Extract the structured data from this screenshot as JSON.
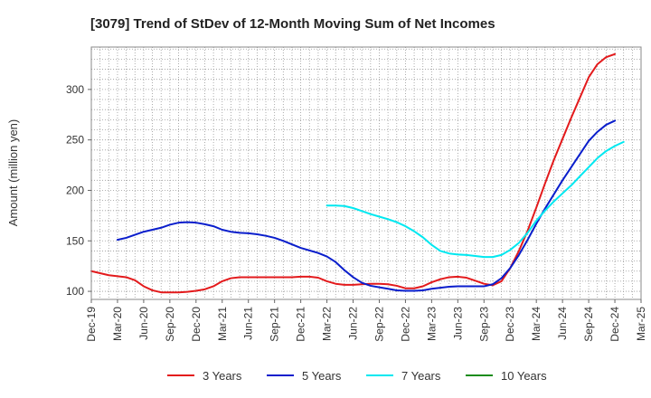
{
  "chart_data": {
    "type": "line",
    "title": "[3079]  Trend of StDev of 12-Month Moving Sum of Net Incomes",
    "xlabel": "",
    "ylabel": "Amount (million yen)",
    "x_ticks": [
      "Dec-19",
      "Mar-20",
      "Jun-20",
      "Sep-20",
      "Dec-20",
      "Mar-21",
      "Jun-21",
      "Sep-21",
      "Dec-21",
      "Mar-22",
      "Jun-22",
      "Sep-22",
      "Dec-22",
      "Mar-23",
      "Jun-23",
      "Sep-23",
      "Dec-23",
      "Mar-24",
      "Jun-24",
      "Sep-24",
      "Dec-24",
      "Mar-25"
    ],
    "y_ticks": [
      100,
      150,
      200,
      250,
      300
    ],
    "ylim": [
      92,
      342
    ],
    "grid": true,
    "legend_position": "bottom",
    "series": [
      {
        "name": "3 Years",
        "color": "#e31a1c",
        "values": [
          [
            "Dec-19",
            120
          ],
          [
            "Jan-20",
            118
          ],
          [
            "Feb-20",
            116
          ],
          [
            "Mar-20",
            115
          ],
          [
            "Apr-20",
            114
          ],
          [
            "May-20",
            111
          ],
          [
            "Jun-20",
            105
          ],
          [
            "Jul-20",
            101
          ],
          [
            "Aug-20",
            99
          ],
          [
            "Sep-20",
            99
          ],
          [
            "Oct-20",
            99
          ],
          [
            "Nov-20",
            99.5
          ],
          [
            "Dec-20",
            100.5
          ],
          [
            "Jan-21",
            102
          ],
          [
            "Feb-21",
            105
          ],
          [
            "Mar-21",
            110
          ],
          [
            "Apr-21",
            113
          ],
          [
            "May-21",
            114
          ],
          [
            "Jun-21",
            114
          ],
          [
            "Jul-21",
            114
          ],
          [
            "Aug-21",
            114
          ],
          [
            "Sep-21",
            114
          ],
          [
            "Oct-21",
            114
          ],
          [
            "Nov-21",
            114
          ],
          [
            "Dec-21",
            114.5
          ],
          [
            "Jan-22",
            114.5
          ],
          [
            "Feb-22",
            113.5
          ],
          [
            "Mar-22",
            110
          ],
          [
            "Apr-22",
            107.5
          ],
          [
            "May-22",
            106.5
          ],
          [
            "Jun-22",
            106.5
          ],
          [
            "Jul-22",
            107
          ],
          [
            "Aug-22",
            107.5
          ],
          [
            "Sep-22",
            107.5
          ],
          [
            "Oct-22",
            107
          ],
          [
            "Nov-22",
            105.5
          ],
          [
            "Dec-22",
            103
          ],
          [
            "Jan-23",
            103
          ],
          [
            "Feb-23",
            105
          ],
          [
            "Mar-23",
            109
          ],
          [
            "Apr-23",
            112
          ],
          [
            "May-23",
            114
          ],
          [
            "Jun-23",
            114.5
          ],
          [
            "Jul-23",
            113.5
          ],
          [
            "Aug-23",
            110.5
          ],
          [
            "Sep-23",
            107.5
          ],
          [
            "Oct-23",
            106
          ],
          [
            "Nov-23",
            110
          ],
          [
            "Dec-23",
            123
          ],
          [
            "Jan-24",
            140
          ],
          [
            "Feb-24",
            160
          ],
          [
            "Mar-24",
            183
          ],
          [
            "Apr-24",
            207
          ],
          [
            "May-24",
            230
          ],
          [
            "Jun-24",
            251
          ],
          [
            "Jul-24",
            272
          ],
          [
            "Aug-24",
            292
          ],
          [
            "Sep-24",
            312
          ],
          [
            "Oct-24",
            325
          ],
          [
            "Nov-24",
            332
          ],
          [
            "Dec-24",
            335
          ]
        ]
      },
      {
        "name": "5 Years",
        "color": "#0a1ecc",
        "values": [
          [
            "Mar-20",
            151
          ],
          [
            "Apr-20",
            153
          ],
          [
            "May-20",
            156
          ],
          [
            "Jun-20",
            159
          ],
          [
            "Jul-20",
            161
          ],
          [
            "Aug-20",
            163
          ],
          [
            "Sep-20",
            166
          ],
          [
            "Oct-20",
            168
          ],
          [
            "Nov-20",
            168.5
          ],
          [
            "Dec-20",
            168
          ],
          [
            "Jan-21",
            166.5
          ],
          [
            "Feb-21",
            164.5
          ],
          [
            "Mar-21",
            161
          ],
          [
            "Apr-21",
            159
          ],
          [
            "May-21",
            158
          ],
          [
            "Jun-21",
            157.5
          ],
          [
            "Jul-21",
            156.5
          ],
          [
            "Aug-21",
            155
          ],
          [
            "Sep-21",
            153
          ],
          [
            "Oct-21",
            150
          ],
          [
            "Nov-21",
            146.5
          ],
          [
            "Dec-21",
            143
          ],
          [
            "Jan-22",
            140.5
          ],
          [
            "Feb-22",
            138
          ],
          [
            "Mar-22",
            134.5
          ],
          [
            "Apr-22",
            129
          ],
          [
            "May-22",
            121
          ],
          [
            "Jun-22",
            114
          ],
          [
            "Jul-22",
            108.5
          ],
          [
            "Aug-22",
            105.5
          ],
          [
            "Sep-22",
            104
          ],
          [
            "Oct-22",
            102.5
          ],
          [
            "Nov-22",
            101
          ],
          [
            "Dec-22",
            100.5
          ],
          [
            "Jan-23",
            100.5
          ],
          [
            "Feb-23",
            101
          ],
          [
            "Mar-23",
            102.5
          ],
          [
            "Apr-23",
            103.5
          ],
          [
            "May-23",
            104.5
          ],
          [
            "Jun-23",
            105
          ],
          [
            "Jul-23",
            105
          ],
          [
            "Aug-23",
            105
          ],
          [
            "Sep-23",
            105
          ],
          [
            "Oct-23",
            107
          ],
          [
            "Nov-23",
            113
          ],
          [
            "Dec-23",
            123
          ],
          [
            "Jan-24",
            136
          ],
          [
            "Feb-24",
            151
          ],
          [
            "Mar-24",
            167
          ],
          [
            "Apr-24",
            182
          ],
          [
            "May-24",
            196
          ],
          [
            "Jun-24",
            210
          ],
          [
            "Jul-24",
            223
          ],
          [
            "Aug-24",
            236
          ],
          [
            "Sep-24",
            249
          ],
          [
            "Oct-24",
            258
          ],
          [
            "Nov-24",
            265
          ],
          [
            "Dec-24",
            269
          ]
        ]
      },
      {
        "name": "7 Years",
        "color": "#00e8f0",
        "values": [
          [
            "Mar-22",
            185
          ],
          [
            "Apr-22",
            185
          ],
          [
            "May-22",
            184.5
          ],
          [
            "Jun-22",
            182.5
          ],
          [
            "Jul-22",
            179.5
          ],
          [
            "Aug-22",
            176.5
          ],
          [
            "Sep-22",
            174
          ],
          [
            "Oct-22",
            171.5
          ],
          [
            "Nov-22",
            168.5
          ],
          [
            "Dec-22",
            164.5
          ],
          [
            "Jan-23",
            159.5
          ],
          [
            "Feb-23",
            153.5
          ],
          [
            "Mar-23",
            146
          ],
          [
            "Apr-23",
            140
          ],
          [
            "May-23",
            137.5
          ],
          [
            "Jun-23",
            136.5
          ],
          [
            "Jul-23",
            136
          ],
          [
            "Aug-23",
            135
          ],
          [
            "Sep-23",
            134
          ],
          [
            "Oct-23",
            134
          ],
          [
            "Nov-23",
            136
          ],
          [
            "Dec-23",
            141
          ],
          [
            "Jan-24",
            148
          ],
          [
            "Feb-24",
            158
          ],
          [
            "Mar-24",
            170
          ],
          [
            "Apr-24",
            180
          ],
          [
            "May-24",
            189
          ],
          [
            "Jun-24",
            197
          ],
          [
            "Jul-24",
            205
          ],
          [
            "Aug-24",
            214
          ],
          [
            "Sep-24",
            223
          ],
          [
            "Oct-24",
            232
          ],
          [
            "Nov-24",
            239
          ],
          [
            "Dec-24",
            244
          ],
          [
            "Jan-25",
            248
          ]
        ]
      },
      {
        "name": "10 Years",
        "color": "#1a8c1a",
        "values": []
      }
    ]
  }
}
